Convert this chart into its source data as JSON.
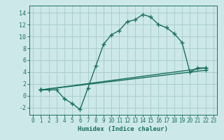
{
  "xlabel": "Humidex (Indice chaleur)",
  "bg_color": "#cde8e8",
  "grid_color": "#aacece",
  "line_color": "#1a7060",
  "xlim": [
    -0.5,
    23.5
  ],
  "ylim": [
    -3.2,
    15.2
  ],
  "xticks": [
    0,
    1,
    2,
    3,
    4,
    5,
    6,
    7,
    8,
    9,
    10,
    11,
    12,
    13,
    14,
    15,
    16,
    17,
    18,
    19,
    20,
    21,
    22,
    23
  ],
  "yticks": [
    -2,
    0,
    2,
    4,
    6,
    8,
    10,
    12,
    14
  ],
  "line1_x": [
    1,
    2,
    3,
    4,
    5,
    6,
    7,
    8,
    9,
    10,
    11,
    12,
    13,
    14,
    15,
    16,
    17,
    18,
    19,
    20,
    21,
    22
  ],
  "line1_y": [
    1,
    1,
    1,
    -0.5,
    -1.3,
    -2.3,
    1.3,
    5.0,
    8.7,
    10.3,
    11.0,
    12.5,
    12.8,
    13.7,
    13.3,
    12.0,
    11.5,
    10.5,
    9.0,
    4.0,
    4.7,
    4.7
  ],
  "line2_x": [
    1,
    22
  ],
  "line2_y": [
    1,
    4.7
  ],
  "line3_x": [
    1,
    22
  ],
  "line3_y": [
    1,
    4.3
  ],
  "xlabel_fontsize": 6.5,
  "tick_fontsize": 5.5
}
